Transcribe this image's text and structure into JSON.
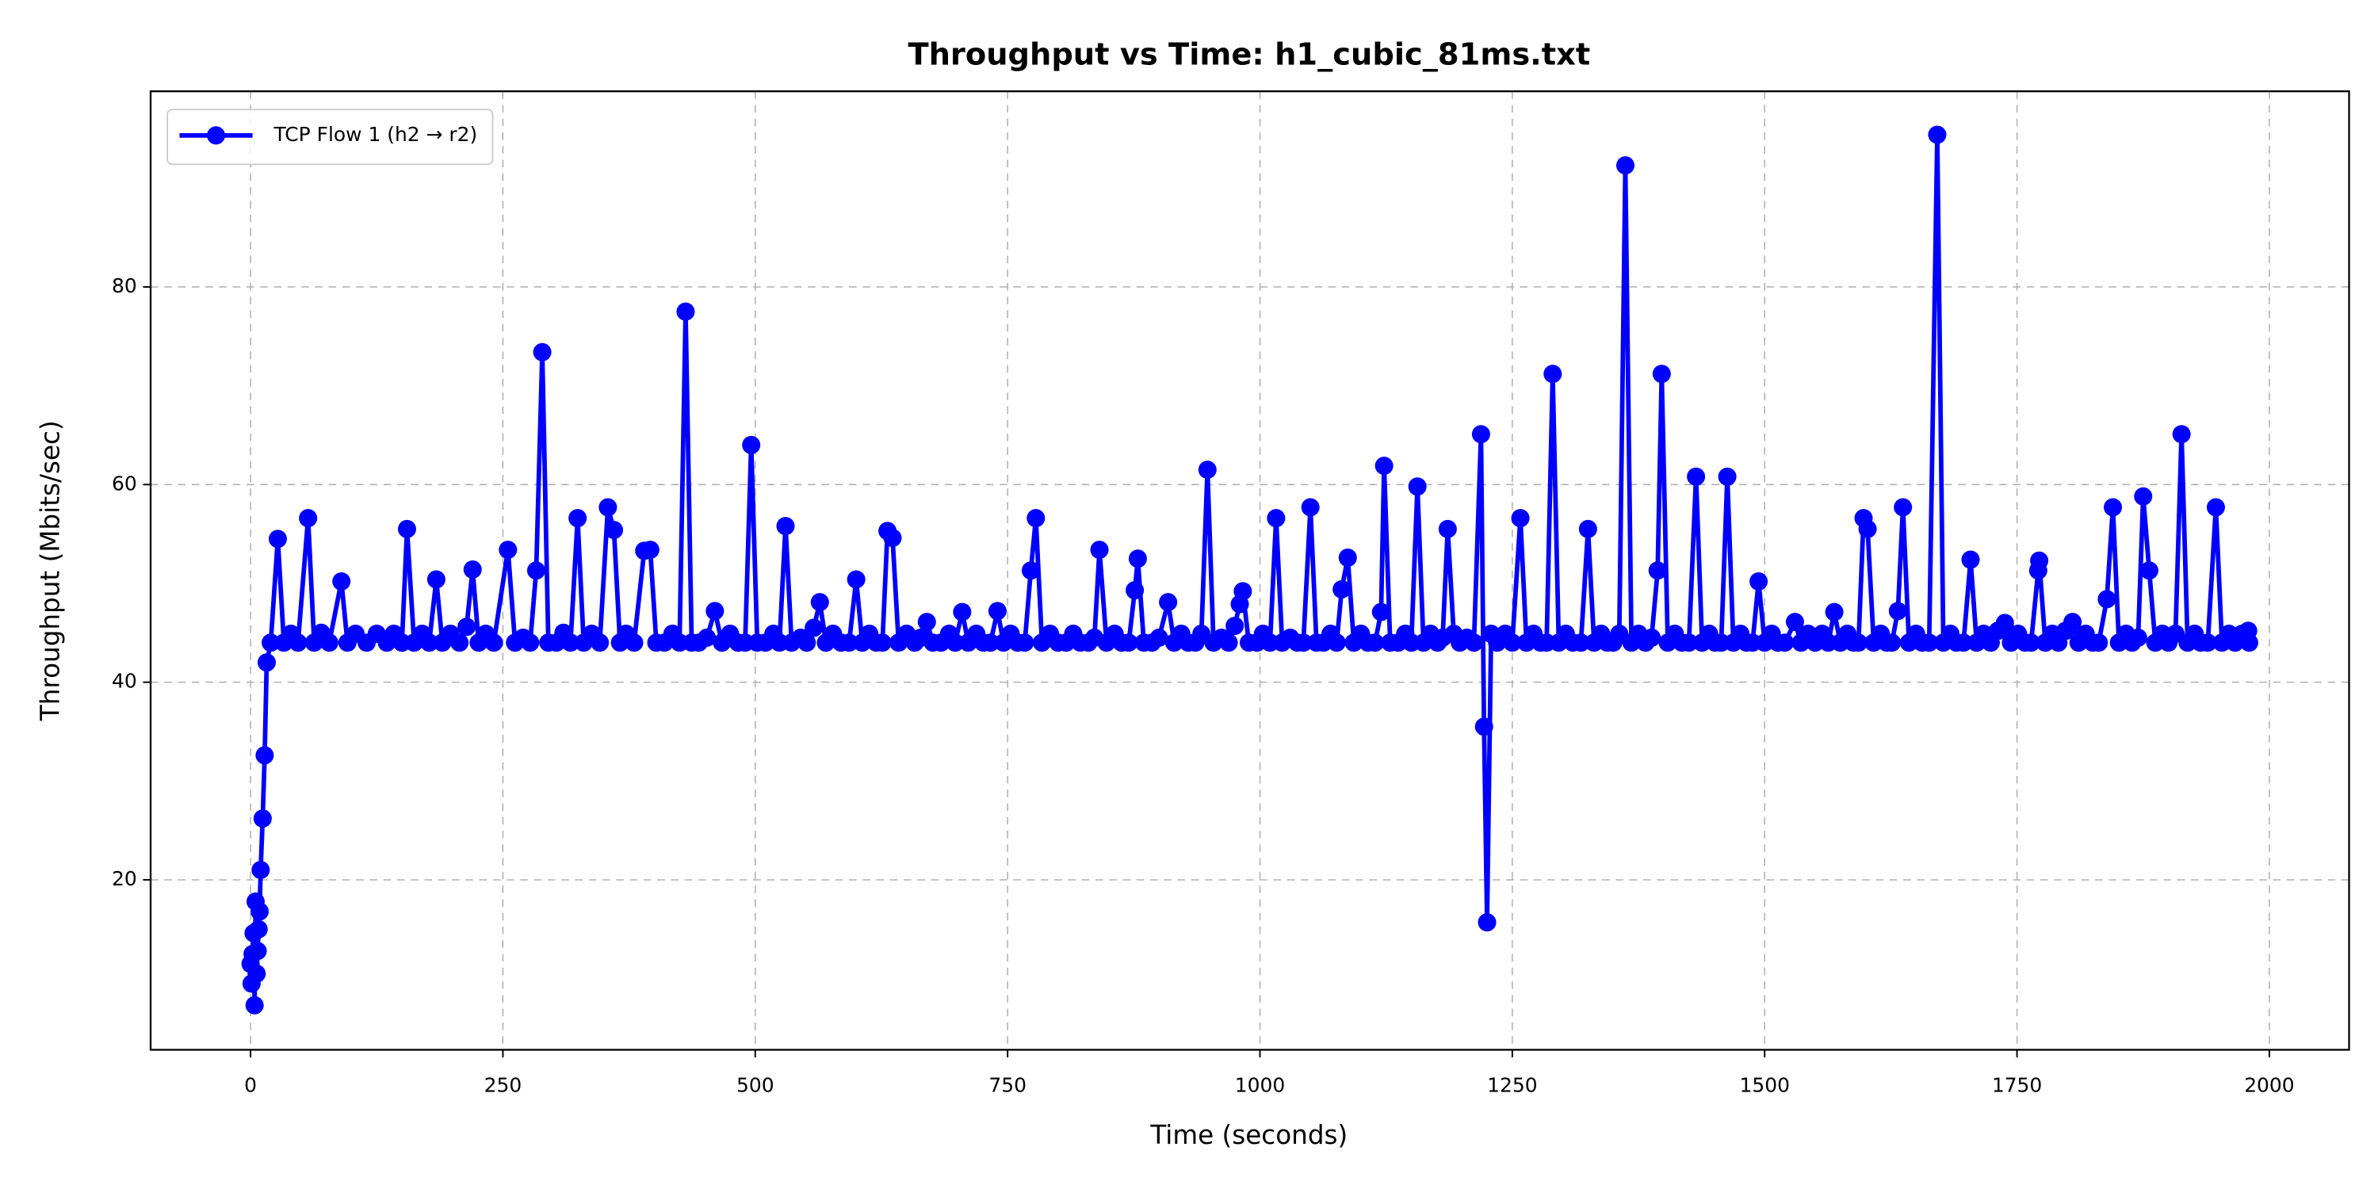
{
  "chart_data": {
    "type": "line",
    "title": "Throughput vs Time: h1_cubic_81ms.txt",
    "x_label": "Time (seconds)",
    "y_label": "Throughput (Mbits/sec)",
    "x": [
      0,
      1,
      2,
      3,
      4,
      5,
      6,
      7,
      8,
      9,
      10,
      12,
      14,
      16,
      20,
      27,
      33,
      40,
      47,
      57,
      63,
      70,
      78,
      90,
      96,
      104,
      115,
      125,
      135,
      142,
      150,
      155,
      162,
      170,
      177,
      184,
      190,
      198,
      207,
      214,
      220,
      226,
      233,
      241,
      255,
      262,
      270,
      277,
      283,
      289,
      295,
      303,
      310,
      317,
      324,
      330,
      338,
      346,
      354,
      360,
      366,
      372,
      380,
      390,
      396,
      402,
      410,
      418,
      425,
      431,
      437,
      444,
      452,
      460,
      467,
      475,
      483,
      490,
      496,
      502,
      510,
      518,
      524,
      530,
      536,
      545,
      551,
      558,
      564,
      570,
      577,
      585,
      593,
      600,
      606,
      613,
      620,
      626,
      631,
      636,
      642,
      650,
      658,
      664,
      670,
      676,
      684,
      692,
      698,
      705,
      711,
      719,
      726,
      733,
      740,
      746,
      753,
      760,
      767,
      773,
      778,
      784,
      792,
      800,
      808,
      815,
      822,
      830,
      836,
      841,
      848,
      856,
      863,
      870,
      876,
      879,
      885,
      893,
      900,
      909,
      915,
      922,
      929,
      936,
      942,
      948,
      954,
      962,
      969,
      975,
      980,
      983,
      989,
      997,
      1003,
      1010,
      1016,
      1022,
      1030,
      1037,
      1043,
      1050,
      1056,
      1063,
      1070,
      1076,
      1081,
      1087,
      1093,
      1100,
      1107,
      1114,
      1120,
      1123,
      1129,
      1137,
      1144,
      1150,
      1156,
      1162,
      1169,
      1176,
      1181,
      1186,
      1192,
      1198,
      1205,
      1212,
      1219,
      1222,
      1225,
      1229,
      1235,
      1243,
      1250,
      1258,
      1264,
      1271,
      1278,
      1284,
      1290,
      1296,
      1303,
      1310,
      1318,
      1325,
      1331,
      1338,
      1344,
      1350,
      1356,
      1362,
      1368,
      1375,
      1382,
      1388,
      1394,
      1398,
      1404,
      1411,
      1418,
      1425,
      1432,
      1438,
      1445,
      1451,
      1457,
      1463,
      1469,
      1476,
      1482,
      1488,
      1494,
      1500,
      1507,
      1513,
      1520,
      1530,
      1536,
      1543,
      1550,
      1557,
      1563,
      1569,
      1575,
      1582,
      1588,
      1593,
      1598,
      1602,
      1608,
      1615,
      1621,
      1626,
      1632,
      1637,
      1643,
      1650,
      1656,
      1663,
      1671,
      1677,
      1684,
      1690,
      1697,
      1704,
      1710,
      1717,
      1724,
      1731,
      1738,
      1744,
      1751,
      1758,
      1764,
      1771,
      1772,
      1778,
      1785,
      1791,
      1798,
      1805,
      1811,
      1818,
      1825,
      1831,
      1839,
      1845,
      1851,
      1858,
      1864,
      1870,
      1875,
      1881,
      1887,
      1894,
      1900,
      1907,
      1913,
      1919,
      1926,
      1932,
      1939,
      1947,
      1953,
      1960,
      1966,
      1973,
      1979,
      1980
    ],
    "series": [
      {
        "name": "TCP Flow 1 (h2 → r2)",
        "color": "#0000ff",
        "values": [
          11.5,
          9.5,
          12.5,
          14.6,
          7.3,
          17.8,
          10.5,
          12.8,
          15,
          16.8,
          21,
          26.2,
          32.6,
          42,
          44,
          54.5,
          44,
          44.9,
          44,
          56.6,
          44,
          45,
          44,
          50.2,
          44,
          44.9,
          44,
          44.9,
          44,
          44.9,
          44,
          55.5,
          44,
          44.9,
          44,
          50.4,
          44,
          44.9,
          44,
          45.6,
          51.4,
          44,
          44.9,
          44,
          53.4,
          44,
          44.5,
          44,
          51.3,
          73.4,
          44,
          44,
          45,
          44,
          56.6,
          44,
          44.9,
          44,
          57.7,
          55.4,
          44,
          44.9,
          44,
          53.3,
          53.4,
          44,
          44,
          44.9,
          44,
          77.5,
          44,
          44,
          44.5,
          47.2,
          44,
          44.9,
          44,
          44,
          64,
          44,
          44,
          44.9,
          44,
          55.8,
          44,
          44.5,
          44,
          45.5,
          48.1,
          44,
          44.9,
          44,
          44,
          50.4,
          44,
          44.9,
          44,
          44,
          55.3,
          54.6,
          44,
          44.9,
          44,
          44.5,
          46.1,
          44,
          44,
          44.9,
          44,
          47.1,
          44,
          44.9,
          44,
          44,
          47.2,
          44,
          44.9,
          44,
          44,
          51.3,
          56.6,
          44,
          44.9,
          44,
          44,
          44.9,
          44,
          44,
          44.5,
          53.4,
          44,
          44.9,
          44,
          44,
          49.3,
          52.5,
          44,
          44,
          44.5,
          48.1,
          44,
          44.9,
          44,
          44,
          44.9,
          61.5,
          44,
          44.5,
          44,
          45.7,
          47.9,
          49.2,
          44,
          44,
          44.9,
          44,
          56.6,
          44,
          44.5,
          44,
          44,
          57.7,
          44,
          44,
          44.9,
          44,
          49.4,
          52.6,
          44,
          44.9,
          44,
          44,
          47.1,
          61.9,
          44,
          44,
          44.9,
          44,
          59.8,
          44,
          44.9,
          44,
          44.5,
          55.5,
          44.9,
          44,
          44.5,
          44,
          65.1,
          35.5,
          15.7,
          44.9,
          44,
          44.9,
          44,
          56.6,
          44,
          44.9,
          44,
          44,
          71.2,
          44,
          44.9,
          44,
          44,
          55.5,
          44,
          44.9,
          44,
          44,
          44.9,
          92.3,
          44,
          44.9,
          44,
          44.5,
          51.3,
          71.2,
          44,
          44.9,
          44,
          44,
          60.8,
          44,
          44.9,
          44,
          44,
          60.8,
          44,
          44.9,
          44,
          44,
          50.2,
          44,
          44.9,
          44,
          44,
          46.1,
          44,
          44.9,
          44,
          44.9,
          44,
          47.1,
          44,
          44.9,
          44,
          44,
          56.6,
          55.5,
          44,
          44.9,
          44,
          44,
          47.2,
          57.7,
          44,
          44.9,
          44,
          44,
          95.4,
          44,
          44.9,
          44,
          44,
          52.4,
          44,
          44.9,
          44,
          45.2,
          46,
          44,
          44.9,
          44,
          44,
          51.3,
          52.3,
          44,
          44.9,
          44,
          45.2,
          46.1,
          44,
          44.9,
          44,
          44,
          48.4,
          57.7,
          44,
          44.9,
          44,
          44.5,
          58.8,
          51.3,
          44,
          44.9,
          44,
          44.9,
          65.1,
          44,
          44.9,
          44,
          44,
          57.7,
          44,
          44.9,
          44,
          44.9,
          45.2,
          44
        ]
      }
    ],
    "xlim": [
      -99,
      2079
    ],
    "ylim": [
      2.8,
      99.8
    ],
    "xticks": [
      0,
      250,
      500,
      750,
      1000,
      1250,
      1500,
      1750,
      2000
    ],
    "yticks": [
      20,
      40,
      60,
      80
    ],
    "grid": true,
    "legend": "upper left",
    "marker": "o"
  }
}
